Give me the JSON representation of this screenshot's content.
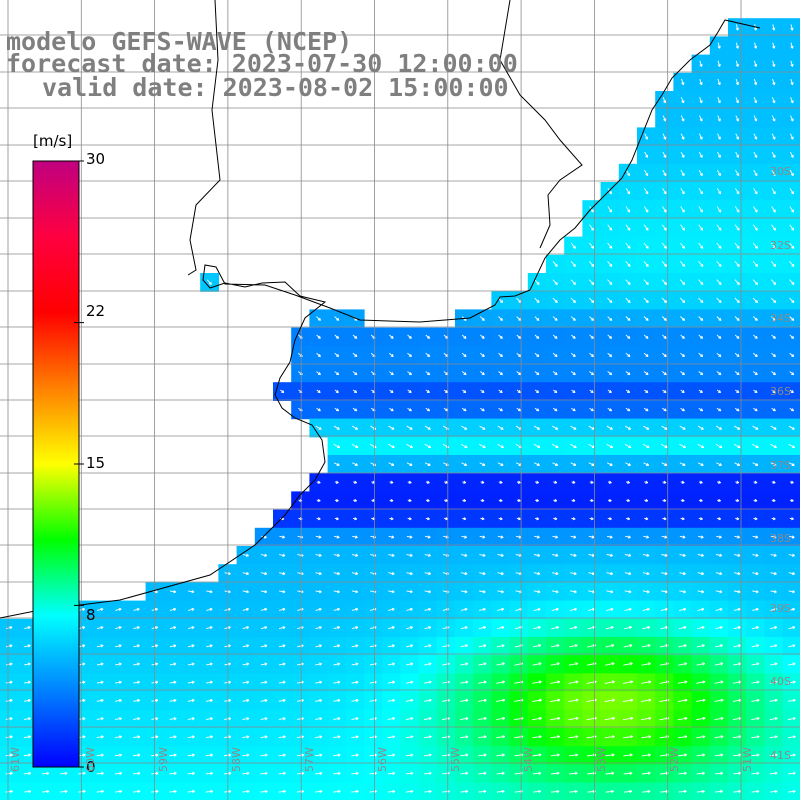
{
  "title": {
    "line1": "modelo GEFS-WAVE (NCEP)",
    "line2": "forecast date: 2023-07-30 12:00:00",
    "line3": "valid date: 2023-08-02 15:00:00"
  },
  "colorbar": {
    "unit": "[m/s]",
    "min": 0,
    "max": 30,
    "ticks": [
      "30",
      "22",
      "15",
      "8",
      "0"
    ],
    "tick_values": [
      30,
      22,
      15,
      8,
      0
    ],
    "colors": [
      "#0000ff",
      "#0080ff",
      "#00ffff",
      "#00ff00",
      "#ffff00",
      "#ff8000",
      "#ff0000",
      "#ff0040",
      "#c00080"
    ]
  },
  "map": {
    "lat_labels": [
      "30S",
      "32S",
      "34S",
      "36S",
      "37S",
      "38S",
      "39S",
      "40S",
      "41S"
    ],
    "lon_labels": [
      "61W",
      "60W",
      "59W",
      "58W",
      "57W",
      "56W",
      "55W",
      "54W",
      "53W",
      "52W",
      "51W"
    ],
    "field": "wind speed with direction arrows",
    "colors": {
      "land": "#ffffff",
      "coast": "#000000",
      "grid": "#8a8a8a",
      "arrow": "#ffffff"
    }
  }
}
